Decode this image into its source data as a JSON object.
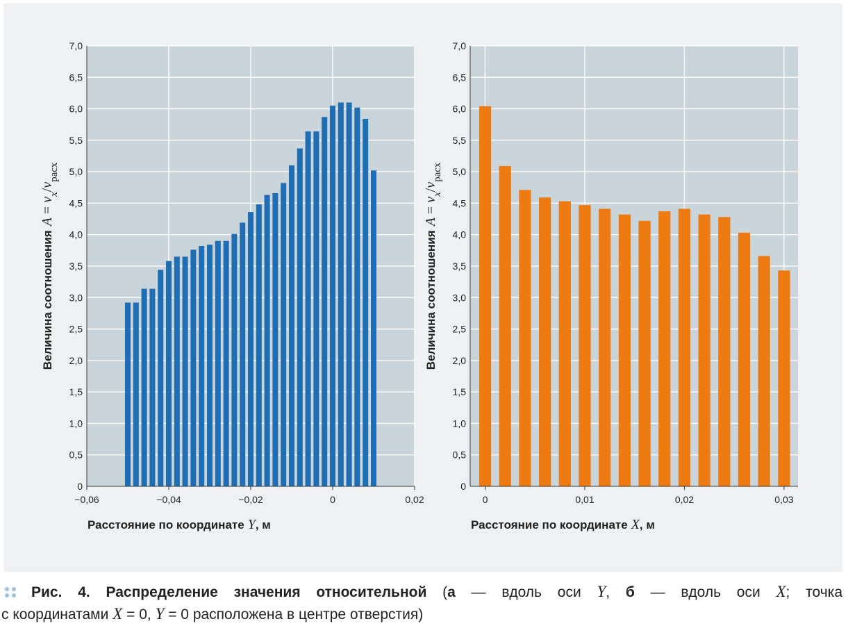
{
  "chart_data": [
    {
      "type": "bar",
      "x_label": [
        "Расстояние по координате",
        "Y",
        ", м"
      ],
      "y_label": [
        "Величина соотношения",
        "A",
        "=",
        "v",
        "x",
        "/",
        "v",
        "расх"
      ],
      "x": [
        -0.05,
        -0.048,
        -0.046,
        -0.044,
        -0.042,
        -0.04,
        -0.038,
        -0.036,
        -0.034,
        -0.032,
        -0.03,
        -0.028,
        -0.026,
        -0.024,
        -0.022,
        -0.02,
        -0.018,
        -0.016,
        -0.014,
        -0.012,
        -0.01,
        -0.008,
        -0.006,
        -0.004,
        -0.002,
        0,
        0.002,
        0.004,
        0.006,
        0.008,
        0.01
      ],
      "values": [
        2.92,
        2.92,
        3.14,
        3.14,
        3.44,
        3.58,
        3.65,
        3.65,
        3.76,
        3.82,
        3.84,
        3.9,
        3.9,
        4.01,
        4.19,
        4.36,
        4.48,
        4.63,
        4.66,
        4.82,
        5.1,
        5.37,
        5.64,
        5.64,
        5.87,
        6.05,
        6.1,
        6.1,
        6.02,
        5.84,
        5.02
      ],
      "color": "#1f6db3",
      "xlim": [
        -0.06,
        0.02
      ],
      "xticks": [
        {
          "value": -0.06,
          "label": "−0,06"
        },
        {
          "value": -0.04,
          "label": "−0,04"
        },
        {
          "value": -0.02,
          "label": "−0,02"
        },
        0,
        {
          "value": 0.02,
          "label": "0,02"
        }
      ],
      "ylim": [
        0,
        7
      ],
      "yticks": [
        0,
        {
          "value": 0.5,
          "label": "0,5"
        },
        {
          "value": 1,
          "label": "1,0"
        },
        {
          "value": 1.5,
          "label": "1,5"
        },
        {
          "value": 2,
          "label": "2,0"
        },
        {
          "value": 2.5,
          "label": "2,5"
        },
        {
          "value": 3,
          "label": "3,0"
        },
        {
          "value": 3.5,
          "label": "3,5"
        },
        {
          "value": 4,
          "label": "4,0"
        },
        {
          "value": 4.5,
          "label": "4,5"
        },
        {
          "value": 5,
          "label": "5,0"
        },
        {
          "value": 5.5,
          "label": "5,5"
        },
        {
          "value": 6,
          "label": "6,0"
        },
        {
          "value": 6.5,
          "label": "6,5"
        },
        {
          "value": 7,
          "label": "7,0"
        }
      ],
      "grid": true
    },
    {
      "type": "bar",
      "x_label": [
        "Расстояние по координате",
        "X",
        ", м"
      ],
      "y_label": [
        "Величина соотношения",
        "A",
        "=",
        "v",
        "x",
        "/",
        "v",
        "расх"
      ],
      "x": [
        0,
        0.002,
        0.004,
        0.006,
        0.008,
        0.01,
        0.012,
        0.014,
        0.016,
        0.018,
        0.02,
        0.022,
        0.024,
        0.026,
        0.028,
        0.03
      ],
      "values": [
        6.04,
        5.09,
        4.71,
        4.59,
        4.53,
        4.47,
        4.41,
        4.32,
        4.22,
        4.37,
        4.41,
        4.32,
        4.28,
        4.03,
        3.66,
        3.43
      ],
      "color": "#ee7a12",
      "xlim": [
        -0.0015,
        0.0314
      ],
      "xticks": [
        0,
        {
          "value": 0.01,
          "label": "0,01"
        },
        {
          "value": 0.02,
          "label": "0,02"
        },
        {
          "value": 0.03,
          "label": "0,03"
        }
      ],
      "ylim": [
        0,
        7
      ],
      "yticks": [
        0,
        {
          "value": 0.5,
          "label": "0,5"
        },
        {
          "value": 1,
          "label": "1,0"
        },
        {
          "value": 1.5,
          "label": "1,5"
        },
        {
          "value": 2,
          "label": "2,0"
        },
        {
          "value": 2.5,
          "label": "2,5"
        },
        {
          "value": 3,
          "label": "3,0"
        },
        {
          "value": 3.5,
          "label": "3,5"
        },
        {
          "value": 4,
          "label": "4,0"
        },
        {
          "value": 4.5,
          "label": "4,5"
        },
        {
          "value": 5,
          "label": "5,0"
        },
        {
          "value": 5.5,
          "label": "5,5"
        },
        {
          "value": 6,
          "label": "6,0"
        },
        {
          "value": 6.5,
          "label": "6,5"
        },
        {
          "value": 7,
          "label": "7,0"
        }
      ],
      "grid": true
    }
  ],
  "caption": [
    "Рис. 4.",
    "Распределение значения относительной",
    "(",
    "а",
    "— вдоль оси",
    "Y",
    ",",
    "б",
    "— вдоль оси",
    "X",
    "; точка",
    "с координатами",
    "X",
    "= 0,",
    "Y",
    "= 0 расположена в центре отверстия)"
  ]
}
